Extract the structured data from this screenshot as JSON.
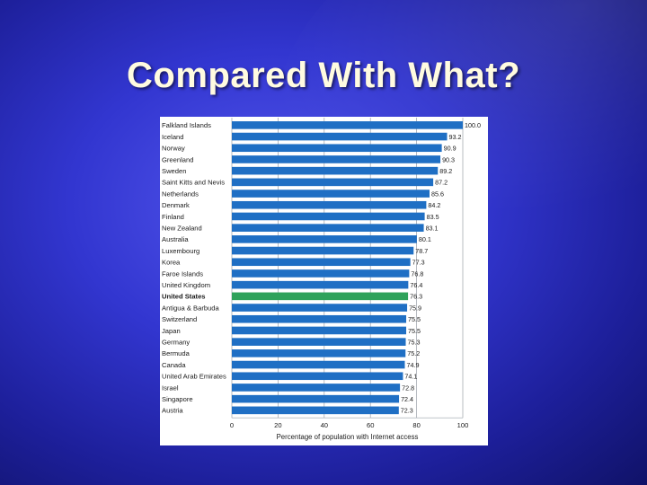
{
  "slide": {
    "title": "Compared With What?"
  },
  "colors": {
    "bar": "#1f6fc4",
    "highlight": "#2fa25a",
    "grid": "#9aa0a8",
    "text": "#1a1a1a"
  },
  "chart_data": {
    "type": "bar",
    "orientation": "horizontal",
    "categories": [
      "Falkland Islands",
      "Iceland",
      "Norway",
      "Greenland",
      "Sweden",
      "Saint Kitts and Nevis",
      "Netherlands",
      "Denmark",
      "Finland",
      "New Zealand",
      "Australia",
      "Luxembourg",
      "Korea",
      "Faroe Islands",
      "United Kingdom",
      "United States",
      "Antigua & Barbuda",
      "Switzerland",
      "Japan",
      "Germany",
      "Bermuda",
      "Canada",
      "United Arab Emirates",
      "Israel",
      "Singapore",
      "Austria"
    ],
    "values": [
      100.0,
      93.2,
      90.9,
      90.3,
      89.2,
      87.2,
      85.6,
      84.2,
      83.5,
      83.1,
      80.1,
      78.7,
      77.3,
      76.8,
      76.4,
      76.3,
      75.9,
      75.5,
      75.5,
      75.3,
      75.2,
      74.9,
      74.1,
      72.8,
      72.4,
      72.3
    ],
    "value_labels": [
      "100.0",
      "93.2",
      "90.9",
      "90.3",
      "89.2",
      "87.2",
      "85.6",
      "84.2",
      "83.5",
      "83.1",
      "80.1",
      "78.7",
      "77.3",
      "76.8",
      "76.4",
      "76.3",
      "75.9",
      "75.5",
      "75.5",
      "75.3",
      "75.2",
      "74.9",
      "74.1",
      "72.8",
      "72.4",
      "72.3"
    ],
    "highlight_category": "United States",
    "xlabel": "Percentage of population with Internet access",
    "xlim": [
      0,
      100
    ],
    "xticks": [
      0,
      20,
      40,
      60,
      80,
      100
    ],
    "grid": true
  }
}
